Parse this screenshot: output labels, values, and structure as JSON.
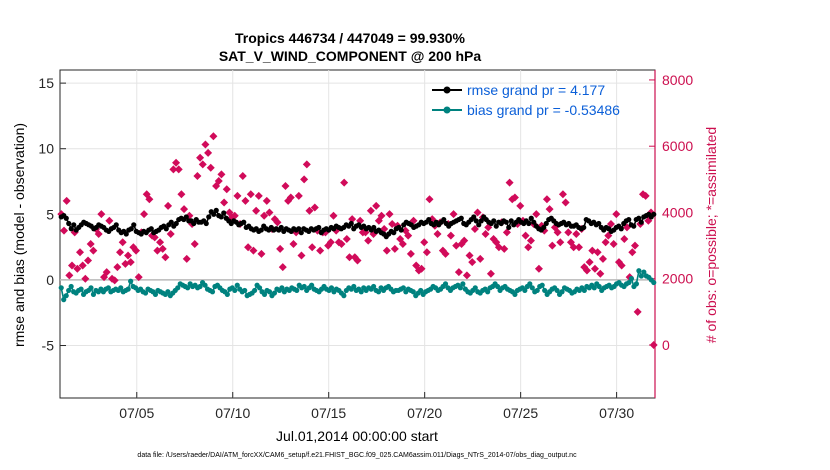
{
  "chart_data": {
    "type": "line",
    "title": "Tropics 446734 / 447049 = 99.930%",
    "subtitle": "SAT_V_WIND_COMPONENT @ 200 hPa",
    "xlabel": "Jul.01,2014 00:00:00 start",
    "ylabel_left": "rmse and bias (model - observation)",
    "ylabel_right": "# of obs: o=possible; *=assimilated",
    "xlim": [
      1,
      32
    ],
    "ylim_left": [
      -9,
      16
    ],
    "ylim_right": [
      -1600,
      8300
    ],
    "x_tick_values": [
      5,
      10,
      15,
      20,
      25,
      30
    ],
    "x_tick_labels": [
      "07/05",
      "07/10",
      "07/15",
      "07/20",
      "07/25",
      "07/30"
    ],
    "y_left_ticks": [
      "15",
      "10",
      "5",
      "0",
      "-5"
    ],
    "y_left_tick_values": [
      15,
      10,
      5,
      0,
      -5
    ],
    "y_right_ticks": [
      "8000",
      "6000",
      "4000",
      "2000",
      "0"
    ],
    "y_right_tick_values": [
      8000,
      6000,
      4000,
      2000,
      0
    ],
    "legend": [
      "rmse grand pr = 4.177",
      "bias grand pr = -0.53486"
    ],
    "colors": {
      "rmse": "#000000",
      "bias": "#00827f",
      "obs": "#d10b5a",
      "right_axis": "#cc0f4f",
      "legend_text": "#0b5fd8",
      "zero_line": "#bbbbbb"
    },
    "series": [
      {
        "name": "rmse",
        "values": [
          4.8,
          4.9,
          4.7,
          4.3,
          3.9,
          4.2,
          3.8,
          4.0,
          4.2,
          4.4,
          4.3,
          4.2,
          4.1,
          3.9,
          4.0,
          4.2,
          4.1,
          4.0,
          3.8,
          3.7,
          3.9,
          4.0,
          4.2,
          3.8,
          3.6,
          3.7,
          3.5,
          3.8,
          3.9,
          4.2,
          3.7,
          3.6,
          3.5,
          3.7,
          3.6,
          3.8,
          3.9,
          3.6,
          3.7,
          3.8,
          4.0,
          4.1,
          3.9,
          4.2,
          4.4,
          4.1,
          4.3,
          4.6,
          4.7,
          4.6,
          4.8,
          4.5,
          4.5,
          4.3,
          4.6,
          4.4,
          4.4,
          4.5,
          4.3,
          4.8,
          5.2,
          5.0,
          5.3,
          4.9,
          4.8,
          5.1,
          4.7,
          4.5,
          4.3,
          4.5,
          4.4,
          4.2,
          4.3,
          4.4,
          4.0,
          4.1,
          3.9,
          3.8,
          3.9,
          3.7,
          3.8,
          4.1,
          3.9,
          3.8,
          4.0,
          3.8,
          3.9,
          3.8,
          4.0,
          3.7,
          3.9,
          3.8,
          3.7,
          3.9,
          3.8,
          3.9,
          3.6,
          3.9,
          3.8,
          3.7,
          3.9,
          3.8,
          3.9,
          4.0,
          3.6,
          3.8,
          3.9,
          3.8,
          4.0,
          3.9,
          4.1,
          4.0,
          3.9,
          4.0,
          4.2,
          4.1,
          4.3,
          3.9,
          4.1,
          4.2,
          4.0,
          4.1,
          3.9,
          4.0,
          3.8,
          4.0,
          3.7,
          3.8,
          3.6,
          3.5,
          3.3,
          3.5,
          3.7,
          3.6,
          3.9,
          4.0,
          3.8,
          4.2,
          4.4,
          4.3,
          4.2,
          4.0,
          4.1,
          4.2,
          4.4,
          4.3,
          4.4,
          4.6,
          4.3,
          4.2,
          4.4,
          4.2,
          4.4,
          4.6,
          4.3,
          4.1,
          4.3,
          4.4,
          4.5,
          4.6,
          4.7,
          4.3,
          4.2,
          4.4,
          4.6,
          4.8,
          4.5,
          4.2,
          4.5,
          4.8,
          4.6,
          4.4,
          4.3,
          4.5,
          4.1,
          4.4,
          4.3,
          4.5,
          4.4,
          4.0,
          4.5,
          4.2,
          4.4,
          4.6,
          4.4,
          4.3,
          4.5,
          4.3,
          4.7,
          4.4,
          4.1,
          3.9,
          3.8,
          4.0,
          4.3,
          4.6,
          4.7,
          4.5,
          4.3,
          4.2,
          4.3,
          4.4,
          4.2,
          4.3,
          4.1,
          4.1,
          4.2,
          4.0,
          3.9,
          4.0,
          4.6,
          4.5,
          4.3,
          4.4,
          4.2,
          4.3,
          4.0,
          3.8,
          4.0,
          3.9,
          3.7,
          3.8,
          4.0,
          4.1,
          3.9,
          4.3,
          4.5,
          4.6,
          4.2,
          4.1,
          4.6,
          4.7,
          4.4,
          4.8,
          4.9,
          5.0,
          4.8,
          5.0
        ]
      },
      {
        "name": "bias",
        "values": [
          -0.6,
          -1.5,
          -1.2,
          -0.8,
          -0.5,
          -0.9,
          -1.0,
          -0.8,
          -0.7,
          -1.1,
          -0.9,
          -0.8,
          -0.6,
          -1.1,
          -0.8,
          -0.9,
          -0.7,
          -0.9,
          -0.7,
          -0.6,
          -0.9,
          -0.8,
          -0.7,
          -0.8,
          -0.6,
          -0.9,
          -0.8,
          -0.7,
          -0.1,
          -0.5,
          -0.6,
          -0.8,
          -0.7,
          -0.9,
          -1.0,
          -0.7,
          -0.8,
          -0.9,
          -1.1,
          -0.8,
          -0.9,
          -1.0,
          -1.1,
          -0.9,
          -1.2,
          -1.0,
          -0.8,
          -0.6,
          -0.3,
          -0.4,
          -0.5,
          -0.6,
          -0.3,
          -0.5,
          -0.4,
          -0.6,
          -0.5,
          -0.2,
          -0.4,
          -0.7,
          -0.8,
          -0.9,
          -0.5,
          -0.4,
          -0.6,
          -0.8,
          -0.9,
          -1.1,
          -0.7,
          -0.6,
          -0.8,
          -0.4,
          -0.7,
          -0.9,
          -0.8,
          -1.2,
          -1.1,
          -1.0,
          -0.8,
          -0.4,
          -0.6,
          -0.9,
          -1.1,
          -0.8,
          -0.9,
          -1.2,
          -1.0,
          -0.7,
          -0.8,
          -0.6,
          -0.9,
          -0.7,
          -0.8,
          -0.6,
          -0.7,
          -0.8,
          -0.4,
          -0.6,
          -0.5,
          -0.8,
          -0.6,
          -0.4,
          -0.7,
          -0.8,
          -0.9,
          -0.7,
          -0.5,
          -0.7,
          -0.8,
          -0.6,
          -0.9,
          -0.7,
          -0.8,
          -1.0,
          -1.2,
          -0.8,
          -0.6,
          -0.7,
          -0.5,
          -0.8,
          -0.7,
          -0.9,
          -0.6,
          -0.8,
          -0.6,
          -0.7,
          -0.5,
          -0.8,
          -0.9,
          -0.6,
          -0.8,
          -0.6,
          -0.5,
          -0.7,
          -0.9,
          -0.8,
          -0.8,
          -0.7,
          -0.6,
          -0.9,
          -0.7,
          -0.8,
          -0.9,
          -1.2,
          -1.0,
          -0.8,
          -1.1,
          -0.9,
          -0.8,
          -0.7,
          -0.5,
          -0.6,
          -0.8,
          -0.7,
          -0.5,
          -0.3,
          -0.6,
          -0.8,
          -0.6,
          -0.5,
          -0.4,
          -0.6,
          -0.3,
          -0.7,
          -0.9,
          -1.0,
          -0.8,
          -0.6,
          -0.9,
          -1.0,
          -0.8,
          -0.7,
          -0.9,
          -0.6,
          -0.5,
          -0.3,
          -0.5,
          -0.8,
          -0.6,
          -0.5,
          -0.7,
          -0.8,
          -0.9,
          -1.1,
          -0.8,
          -0.7,
          -0.6,
          -0.8,
          -0.5,
          -0.3,
          -0.6,
          -0.9,
          -0.8,
          -0.5,
          -0.4,
          -0.8,
          -1.1,
          -0.9,
          -0.7,
          -0.6,
          -0.8,
          -1.1,
          -0.9,
          -0.6,
          -0.7,
          -0.8,
          -1.0,
          -0.9,
          -0.7,
          -0.8,
          -0.6,
          -0.8,
          -0.5,
          -0.6,
          -0.4,
          -0.6,
          -0.3,
          -0.5,
          -0.8,
          -0.6,
          -0.5,
          -0.4,
          -0.6,
          -0.5,
          -0.3,
          -0.2,
          -0.4,
          -0.5,
          -0.3,
          -0.2,
          0.1,
          -0.5,
          -0.3,
          0.7,
          0.3,
          0.6,
          0.3,
          0.2,
          0.0,
          -0.2
        ]
      },
      {
        "name": "obs_assimilated",
        "values": [
          3950,
          3450,
          4350,
          2100,
          2400,
          3400,
          2300,
          2800,
          2400,
          2000,
          2550,
          3050,
          2850,
          3500,
          3350,
          3950,
          2050,
          2200,
          3750,
          2000,
          1950,
          2350,
          2800,
          3100,
          2450,
          2700,
          2500,
          2950,
          2850,
          2050,
          3400,
          3950,
          4550,
          4400,
          3300,
          3250,
          2850,
          3100,
          2900,
          2650,
          4200,
          3350,
          5300,
          5500,
          5300,
          4550,
          4100,
          2600,
          3900,
          3650,
          3050,
          5100,
          5650,
          5450,
          6050,
          5800,
          5350,
          6300,
          4800,
          4950,
          5150,
          4300,
          4700,
          4000,
          3850,
          3900,
          4500,
          3650,
          5100,
          4350,
          2950,
          4550,
          2850,
          4050,
          4500,
          2750,
          3900,
          4350,
          4000,
          3500,
          3800,
          3700,
          2900,
          2350,
          4800,
          4350,
          4450,
          3050,
          3400,
          4500,
          2700,
          5000,
          5450,
          4050,
          2950,
          4150,
          3450,
          2850,
          3400,
          3400,
          3000,
          3100,
          3900,
          3450,
          3100,
          3050,
          4900,
          3200,
          2650,
          3800,
          2650,
          2550,
          3750,
          3400,
          3400,
          3150,
          4050,
          3350,
          4200,
          3750,
          3900,
          3500,
          2850,
          3950,
          3650,
          2900,
          3600,
          3200,
          3050,
          3450,
          3300,
          2750,
          3750,
          2400,
          2250,
          2300,
          3100,
          2800,
          4400,
          3800,
          3600,
          3350,
          3700,
          2850,
          2750,
          3650,
          3300,
          3950,
          3000,
          2200,
          3050,
          3150,
          2100,
          2700,
          2500,
          3500,
          4000,
          2600,
          3850,
          3350,
          3550,
          2150,
          3200,
          3100,
          2950,
          3700,
          2900,
          3400,
          4900,
          4400,
          4450,
          3650,
          4200,
          3750,
          3300,
          2950,
          3150,
          3650,
          3950,
          2300,
          3600,
          3450,
          4400,
          4100,
          3000,
          3550,
          3400,
          3100,
          4550,
          4300,
          3400,
          3100,
          2950,
          3350,
          2950,
          3500,
          2350,
          2250,
          2500,
          2850,
          2300,
          2800,
          2150,
          2600,
          3100,
          3300,
          3650,
          3050,
          3950,
          2500,
          2400,
          3200,
          3550,
          2050,
          2800,
          3000,
          1000,
          3650,
          4550,
          4500,
          3750,
          4000,
          0
        ]
      }
    ]
  },
  "footnote": "data file: /Users/raeder/DAI/ATM_forcXX/CAM6_setup/f.e21.FHIST_BGC.f09_025.CAM6assim.011/Diags_NTrS_2014-07/obs_diag_output.nc"
}
